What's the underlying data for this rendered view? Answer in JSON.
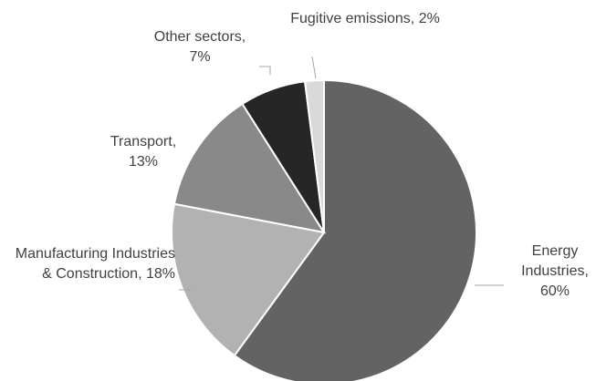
{
  "chart_data": {
    "type": "pie",
    "categories": [
      "Energy Industries,",
      "Manufacturing Industries & Construction,",
      "Transport,",
      "Other sectors,",
      "Fugitive emissions,"
    ],
    "values": [
      60,
      18,
      13,
      7,
      2
    ],
    "value_labels": [
      "60%",
      "18%",
      "13%",
      "7%",
      "2%"
    ],
    "colors": [
      "#636363",
      "#b2b2b2",
      "#898989",
      "#262626",
      "#d9d9d9"
    ]
  }
}
